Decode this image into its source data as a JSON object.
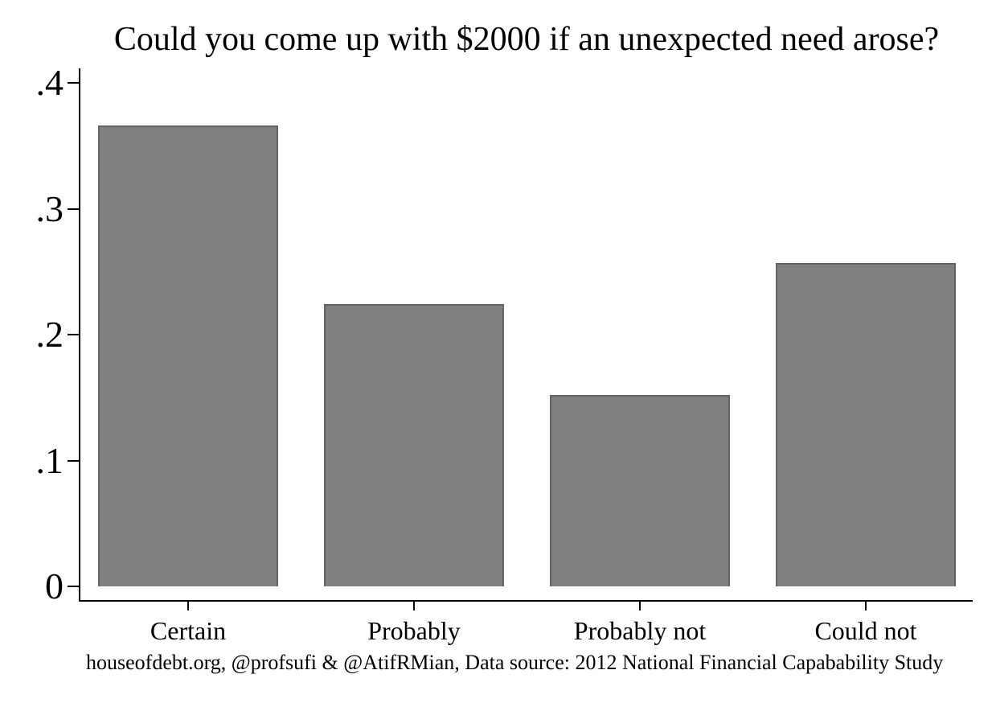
{
  "chart_data": {
    "type": "bar",
    "title": "Could you come up with $2000 if an unexpected need arose?",
    "categories": [
      "Certain",
      "Probably",
      "Probably not",
      "Could not"
    ],
    "values": [
      0.366,
      0.224,
      0.152,
      0.257
    ],
    "xlabel": "",
    "ylabel": "",
    "ylim": [
      0,
      0.4
    ],
    "yticks": [
      0,
      0.1,
      0.2,
      0.3,
      0.4
    ],
    "ytick_labels": [
      "0",
      ".1",
      ".2",
      ".3",
      ".4"
    ],
    "grid": false,
    "legend": "none",
    "note": "houseofdebt.org, @profsufi & @AtifRMian, Data source: 2012 National Financial Capabability Study",
    "colors": {
      "bar_fill": "#808080",
      "bar_border": "#646464",
      "axis": "#000000",
      "text": "#000000",
      "background": "#ffffff"
    }
  }
}
